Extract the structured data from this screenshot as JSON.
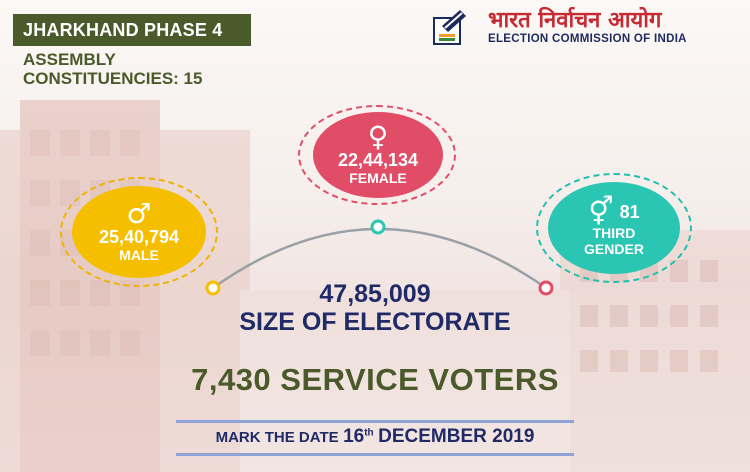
{
  "header": {
    "phase": "JHARKHAND PHASE 4",
    "assembly_line1": "ASSEMBLY",
    "assembly_line2": "CONSTITUENCIES: 15"
  },
  "eci": {
    "hindi": "भारत निर्वाचन आयोग",
    "english": "ELECTION COMMISSION OF INDIA"
  },
  "voters": {
    "female": {
      "count": "22,44,134",
      "label": "FEMALE",
      "icon": "female-symbol-icon"
    },
    "male": {
      "count": "25,40,794",
      "label": "MALE",
      "icon": "male-symbol-icon"
    },
    "third": {
      "count": "81",
      "label_line1": "THIRD",
      "label_line2": "GENDER",
      "icon": "third-gender-symbol-icon"
    }
  },
  "electorate": {
    "count": "47,85,009",
    "label": "SIZE OF ELECTORATE"
  },
  "service_voters": "7,430 SERVICE VOTERS",
  "date": {
    "prefix": "MARK THE DATE",
    "day": "16",
    "suffix": "th",
    "month_year": "DECEMBER 2019"
  },
  "colors": {
    "female": "#e14c66",
    "male": "#f5bf00",
    "third": "#2bc5b3",
    "navy": "#1f2a66",
    "olive": "#4a5a2a"
  }
}
